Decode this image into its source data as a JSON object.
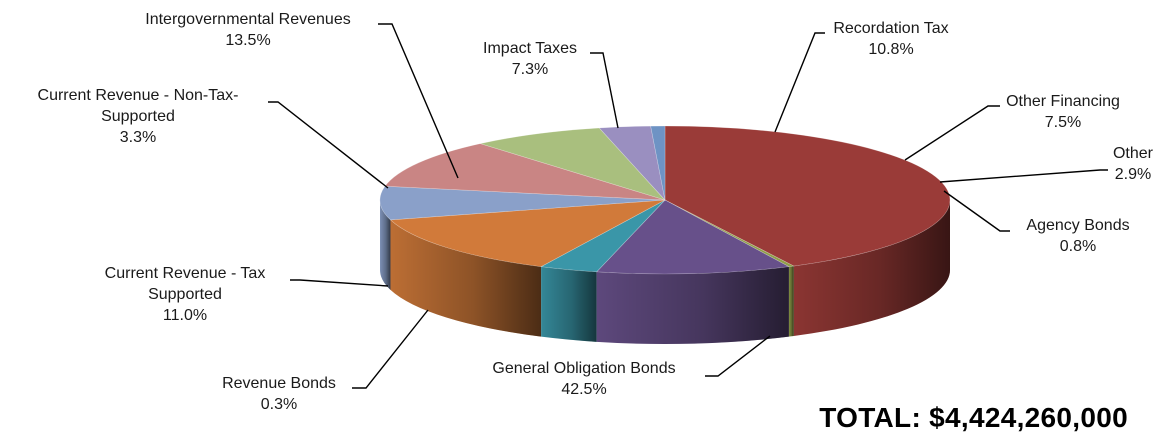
{
  "chart_data": {
    "type": "pie",
    "title": "",
    "three_d": true,
    "slices": [
      {
        "name": "General Obligation Bonds",
        "value": 42.5,
        "label": "42.5%",
        "color": "#9a3b38"
      },
      {
        "name": "Revenue Bonds",
        "value": 0.3,
        "label": "0.3%",
        "color": "#8f9e48"
      },
      {
        "name": "Current Revenue - Tax Supported",
        "value": 11.0,
        "label": "11.0%",
        "color": "#67508a"
      },
      {
        "name": "Current Revenue - Non-Tax-Supported",
        "value": 3.3,
        "label": "3.3%",
        "color": "#3a96a8"
      },
      {
        "name": "Intergovernmental Revenues",
        "value": 13.5,
        "label": "13.5%",
        "color": "#d17a3a"
      },
      {
        "name": "Impact Taxes",
        "value": 7.3,
        "label": "7.3%",
        "color": "#8aa0c9"
      },
      {
        "name": "Recordation Tax",
        "value": 10.8,
        "label": "10.8%",
        "color": "#c98584"
      },
      {
        "name": "Other Financing",
        "value": 7.5,
        "label": "7.5%",
        "color": "#a9bf7e"
      },
      {
        "name": "Other",
        "value": 2.9,
        "label": "2.9%",
        "color": "#9a8fc0"
      },
      {
        "name": "Agency Bonds",
        "value": 0.8,
        "label": "0.8%",
        "color": "#6e93c4"
      }
    ],
    "total_label": "TOTAL: $4,424,260,000"
  }
}
